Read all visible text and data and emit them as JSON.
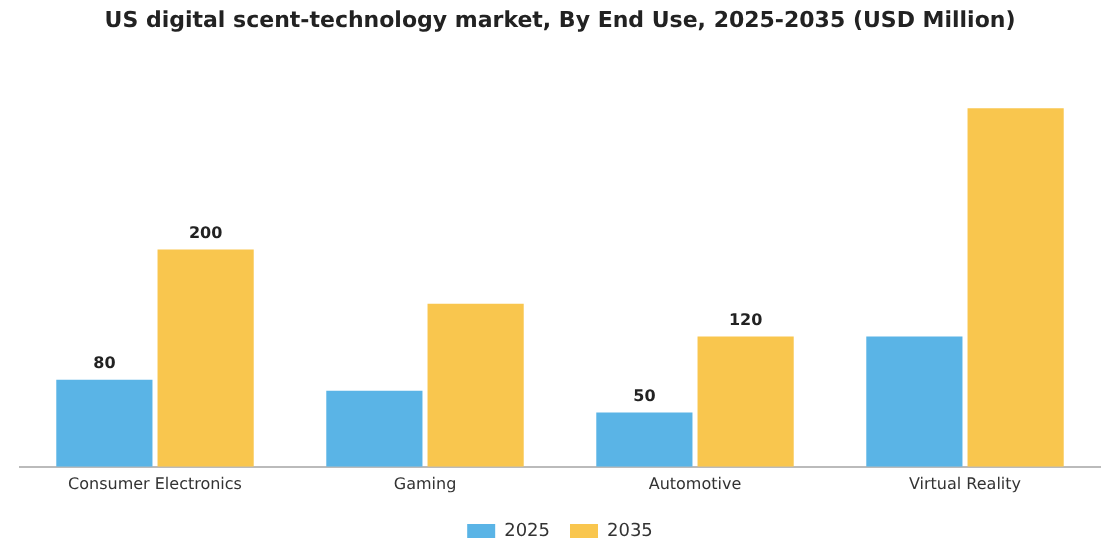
{
  "chart_data": {
    "type": "bar",
    "title": "US digital scent-technology market, By End Use, 2025-2035 (USD Million)",
    "categories": [
      "Consumer Electronics",
      "Gaming",
      "Automotive",
      "Virtual Reality"
    ],
    "series": [
      {
        "name": "2025",
        "color": "#5ab4e6",
        "values": [
          80,
          70,
          50,
          120
        ],
        "value_labels": [
          "80",
          null,
          "50",
          null
        ]
      },
      {
        "name": "2035",
        "color": "#f9c64e",
        "values": [
          200,
          150,
          120,
          330
        ],
        "value_labels": [
          "200",
          null,
          "120",
          null
        ]
      }
    ],
    "legend": "bottom",
    "grid": false
  }
}
